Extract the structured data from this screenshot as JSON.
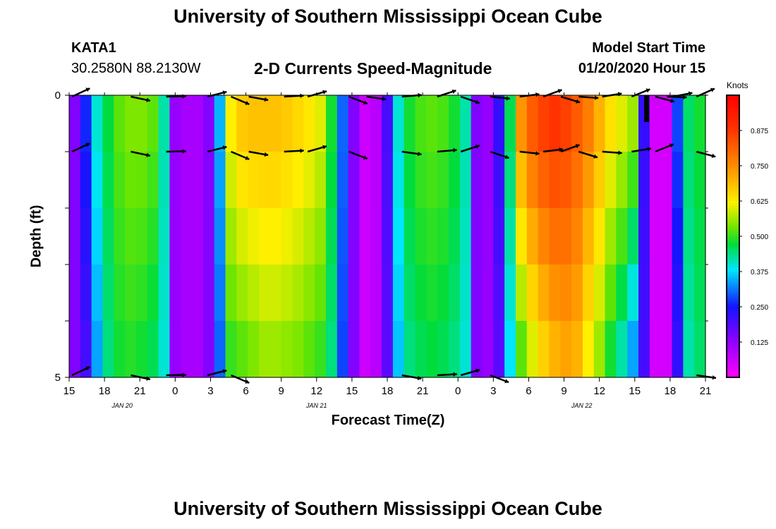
{
  "header": {
    "title": "University of Southern Mississippi Ocean Cube",
    "station_id": "KATA1",
    "coordinates": "30.2580N 88.2130W",
    "subtitle": "2-D Currents Speed-Magnitude",
    "model_start_label": "Model Start Time",
    "model_start_value": "01/20/2020 Hour 15",
    "footer_title": "University of Southern Mississippi Ocean Cube"
  },
  "chart_data": {
    "type": "heatmap",
    "title": "2-D Currents Speed-Magnitude",
    "xlabel": "Forecast Time(Z)",
    "ylabel": "Depth (ft)",
    "x_hours_range": [
      0,
      54
    ],
    "ylim": [
      0,
      5
    ],
    "x_ticks": [
      "15",
      "18",
      "21",
      "0",
      "3",
      "6",
      "9",
      "12",
      "15",
      "18",
      "21",
      "0",
      "3",
      "6",
      "9",
      "12",
      "15",
      "18",
      "21"
    ],
    "y_ticks": [
      "0",
      "5"
    ],
    "date_labels": [
      {
        "text": "JAN 20",
        "hour": 4.5
      },
      {
        "text": "JAN 21",
        "hour": 21
      },
      {
        "text": "JAN 22",
        "hour": 43.5
      }
    ],
    "colorbar": {
      "units": "Knots",
      "range": [
        0.0,
        1.0
      ],
      "tick_values": [
        0.125,
        0.25,
        0.375,
        0.5,
        0.625,
        0.75,
        0.875
      ],
      "tick_labels": [
        "0.125",
        "0.250",
        "0.375",
        "0.500",
        "0.625",
        "0.750",
        "0.875"
      ]
    },
    "depth_levels": 5,
    "speed_profile_surface_knots": [
      0.14,
      0.26,
      0.4,
      0.47,
      0.52,
      0.54,
      0.54,
      0.52,
      0.42,
      0.12,
      0.1,
      0.1,
      0.14,
      0.35,
      0.62,
      0.67,
      0.68,
      0.68,
      0.68,
      0.67,
      0.65,
      0.63,
      0.6,
      0.48,
      0.3,
      0.14,
      0.06,
      0.08,
      0.2,
      0.4,
      0.48,
      0.51,
      0.52,
      0.51,
      0.48,
      0.42,
      0.14,
      0.12,
      0.22,
      0.46,
      0.74,
      0.82,
      0.86,
      0.88,
      0.86,
      0.82,
      0.77,
      0.7,
      0.64,
      0.6,
      0.56,
      0.22,
      0.05,
      0.05,
      0.28,
      0.45,
      0.48
    ],
    "speed_profile_bottom_knots": [
      0.14,
      0.2,
      0.34,
      0.44,
      0.48,
      0.49,
      0.48,
      0.46,
      0.4,
      0.12,
      0.1,
      0.1,
      0.14,
      0.3,
      0.5,
      0.52,
      0.54,
      0.56,
      0.56,
      0.55,
      0.54,
      0.52,
      0.5,
      0.44,
      0.28,
      0.14,
      0.06,
      0.08,
      0.18,
      0.36,
      0.44,
      0.46,
      0.47,
      0.46,
      0.44,
      0.4,
      0.14,
      0.12,
      0.18,
      0.38,
      0.52,
      0.6,
      0.66,
      0.7,
      0.72,
      0.7,
      0.62,
      0.56,
      0.48,
      0.42,
      0.34,
      0.2,
      0.05,
      0.05,
      0.22,
      0.42,
      0.45
    ],
    "current_vectors": [
      {
        "row": 0,
        "times": [
          0,
          5,
          8,
          11.5,
          13.5,
          15,
          18,
          20,
          23.5,
          25,
          28,
          31,
          33,
          35.5,
          38,
          40,
          41.5,
          43,
          45,
          47.5,
          49.5,
          50.5,
          51,
          53
        ]
      },
      {
        "row": 1,
        "times": [
          0,
          5,
          8,
          11.5,
          13.5,
          15,
          18,
          20,
          23.5,
          28,
          31,
          33,
          35.5,
          38,
          40,
          41.5,
          43,
          45,
          47.5,
          49.5,
          53
        ]
      },
      {
        "row": 5,
        "times": [
          0,
          5,
          8,
          11.5,
          13.5,
          28,
          31,
          33,
          35.5,
          53
        ]
      }
    ]
  }
}
